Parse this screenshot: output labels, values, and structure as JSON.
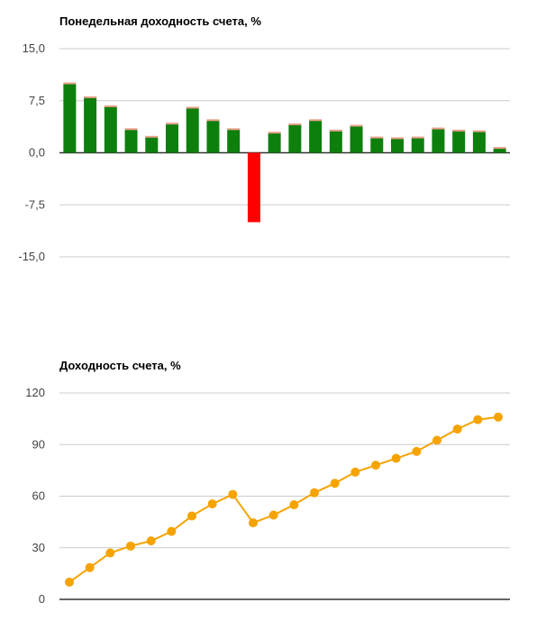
{
  "chart_data": [
    {
      "type": "bar",
      "title": "Понедельная доходность счета, %",
      "xlabel": "",
      "ylabel": "",
      "ylim": [
        -15,
        15
      ],
      "yticks": [
        "15,0",
        "7,5",
        "0,0",
        "-7,5",
        "-15,0"
      ],
      "ytick_values": [
        15,
        7.5,
        0,
        -7.5,
        -15
      ],
      "values": [
        10.0,
        8.0,
        6.7,
        3.4,
        2.3,
        4.2,
        6.5,
        4.7,
        3.4,
        -10.0,
        2.9,
        4.1,
        4.7,
        3.2,
        3.9,
        2.2,
        2.1,
        2.2,
        3.5,
        3.2,
        3.1,
        0.7
      ],
      "grid": true,
      "colors": {
        "positive": "#0d7f0d",
        "negative": "#ff0000",
        "cap": "#e8a08a"
      }
    },
    {
      "type": "line",
      "title": "Доходность счета, %",
      "xlabel": "",
      "ylabel": "",
      "ylim": [
        0,
        120
      ],
      "yticks": [
        "120",
        "90",
        "60",
        "30",
        "0"
      ],
      "ytick_values": [
        120,
        90,
        60,
        30,
        0
      ],
      "values": [
        10,
        18.5,
        27,
        31,
        34,
        39.5,
        48.5,
        55.5,
        61,
        44.5,
        49,
        55,
        62,
        67.5,
        74,
        78,
        82,
        86,
        92.5,
        99,
        104.5,
        106
      ],
      "grid": true,
      "colors": {
        "line": "#f5a300"
      }
    }
  ]
}
